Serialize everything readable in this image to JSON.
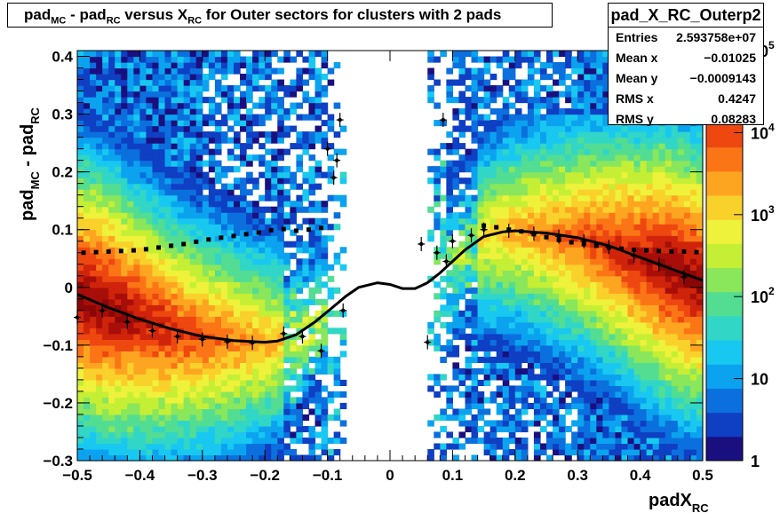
{
  "title": {
    "a": "pad",
    "a_sub": "MC",
    "b": " - pad",
    "b_sub": "RC",
    "c": " versus X",
    "c_sub": "RC",
    "d": " for Outer sectors for clusters with 2 pads"
  },
  "stats": {
    "name": "pad_X_RC_Outerp2",
    "rows": [
      {
        "label": "Entries",
        "value": "2.593758e+07"
      },
      {
        "label": "Mean x",
        "value": "−0.01025"
      },
      {
        "label": "Mean y",
        "value": "−0.0009143"
      },
      {
        "label": "RMS x",
        "value": "0.4247"
      },
      {
        "label": "RMS y",
        "value": "0.08283"
      }
    ]
  },
  "chart_data": {
    "type": "heatmap",
    "xlabel": "padX",
    "xlabel_sub": "RC",
    "ylabel": "pad",
    "ylabel_sub1": "MC",
    "ylabel_mid": " - pad",
    "ylabel_sub2": "RC",
    "xlim": [
      -0.5,
      0.5
    ],
    "ylim": [
      -0.3,
      0.41
    ],
    "x_ticks": [
      -0.5,
      -0.4,
      -0.3,
      -0.2,
      -0.1,
      0,
      0.1,
      0.2,
      0.3,
      0.4,
      0.5
    ],
    "x_tick_labels": [
      "−0.5",
      "−0.4",
      "−0.3",
      "−0.2",
      "−0.1",
      "0",
      "0.1",
      "0.2",
      "0.3",
      "0.4",
      "0.5"
    ],
    "y_ticks": [
      -0.3,
      -0.2,
      -0.1,
      0,
      0.1,
      0.2,
      0.3,
      0.4
    ],
    "y_tick_labels": [
      "−0.3",
      "−0.2",
      "−0.1",
      "0",
      "0.1",
      "0.2",
      "0.3",
      "0.4"
    ],
    "z_scale": "log",
    "z_range": [
      1,
      100000
    ],
    "palette_labels": [
      {
        "base": "1",
        "exp": "",
        "value": 1
      },
      {
        "base": "10",
        "exp": "",
        "value": 10
      },
      {
        "base": "10",
        "exp": "2",
        "value": 100
      },
      {
        "base": "10",
        "exp": "3",
        "value": 1000
      },
      {
        "base": "10",
        "exp": "4",
        "value": 10000
      },
      {
        "base": "10",
        "exp": "5",
        "value": 100000
      }
    ],
    "colors": [
      "#1a0f7f",
      "#0f3fc3",
      "#0b70de",
      "#0ba3ef",
      "#18c8f0",
      "#31d6c6",
      "#52dd93",
      "#8ae65b",
      "#c5ef35",
      "#eef23a",
      "#f9d12b",
      "#fda520",
      "#fb7516",
      "#ee4710",
      "#cf240b",
      "#a80e09",
      "#8a0707"
    ],
    "profile_fit": {
      "x": [
        -0.5,
        -0.45,
        -0.4,
        -0.35,
        -0.3,
        -0.25,
        -0.2,
        -0.18,
        -0.15,
        -0.12,
        -0.1,
        -0.07,
        -0.05,
        -0.02,
        0,
        0.02,
        0.04,
        0.06,
        0.08,
        0.1,
        0.12,
        0.15,
        0.18,
        0.2,
        0.25,
        0.3,
        0.35,
        0.4,
        0.45,
        0.5
      ],
      "y": [
        -0.012,
        -0.035,
        -0.055,
        -0.072,
        -0.085,
        -0.092,
        -0.095,
        -0.093,
        -0.082,
        -0.06,
        -0.042,
        -0.015,
        0.0,
        0.008,
        0.005,
        -0.002,
        -0.002,
        0.008,
        0.025,
        0.045,
        0.065,
        0.088,
        0.096,
        0.098,
        0.094,
        0.086,
        0.072,
        0.052,
        0.032,
        0.012
      ]
    },
    "mean_profile_points": {
      "x": [
        -0.49,
        -0.47,
        -0.45,
        -0.43,
        -0.41,
        -0.39,
        -0.37,
        -0.35,
        -0.33,
        -0.31,
        -0.29,
        -0.27,
        -0.25,
        -0.23,
        -0.21,
        -0.19,
        -0.17,
        -0.15,
        -0.13,
        -0.11,
        0.15,
        0.17,
        0.19,
        0.21,
        0.23,
        0.25,
        0.27,
        0.29,
        0.31,
        0.33,
        0.35,
        0.37,
        0.39,
        0.41,
        0.43,
        0.45,
        0.47,
        0.49
      ],
      "y": [
        0.06,
        0.061,
        0.062,
        0.063,
        0.064,
        0.066,
        0.069,
        0.072,
        0.075,
        0.079,
        0.083,
        0.086,
        0.089,
        0.092,
        0.095,
        0.099,
        0.101,
        0.098,
        0.1,
        0.103,
        0.107,
        0.104,
        0.1,
        0.097,
        0.092,
        0.087,
        0.082,
        0.078,
        0.075,
        0.072,
        0.069,
        0.067,
        0.065,
        0.064,
        0.063,
        0.062,
        0.062,
        0.061
      ]
    },
    "error_points": {
      "x": [
        -0.5,
        -0.46,
        -0.42,
        -0.38,
        -0.34,
        -0.3,
        -0.26,
        -0.22,
        -0.17,
        -0.14,
        -0.11,
        -0.1,
        -0.09,
        -0.085,
        -0.08,
        -0.075,
        0.05,
        0.06,
        0.075,
        0.085,
        0.09,
        0.1,
        0.13,
        0.15,
        0.19,
        0.23,
        0.27,
        0.31,
        0.35,
        0.39,
        0.43,
        0.47
      ],
      "y": [
        -0.052,
        -0.04,
        -0.06,
        -0.075,
        -0.085,
        -0.09,
        -0.094,
        -0.096,
        -0.08,
        -0.085,
        -0.11,
        0.24,
        0.19,
        0.22,
        0.29,
        -0.04,
        0.075,
        -0.095,
        0.06,
        0.29,
        0.045,
        0.08,
        0.09,
        0.1,
        0.098,
        0.093,
        0.088,
        0.08,
        0.07,
        0.055,
        0.04,
        0.018
      ]
    }
  }
}
